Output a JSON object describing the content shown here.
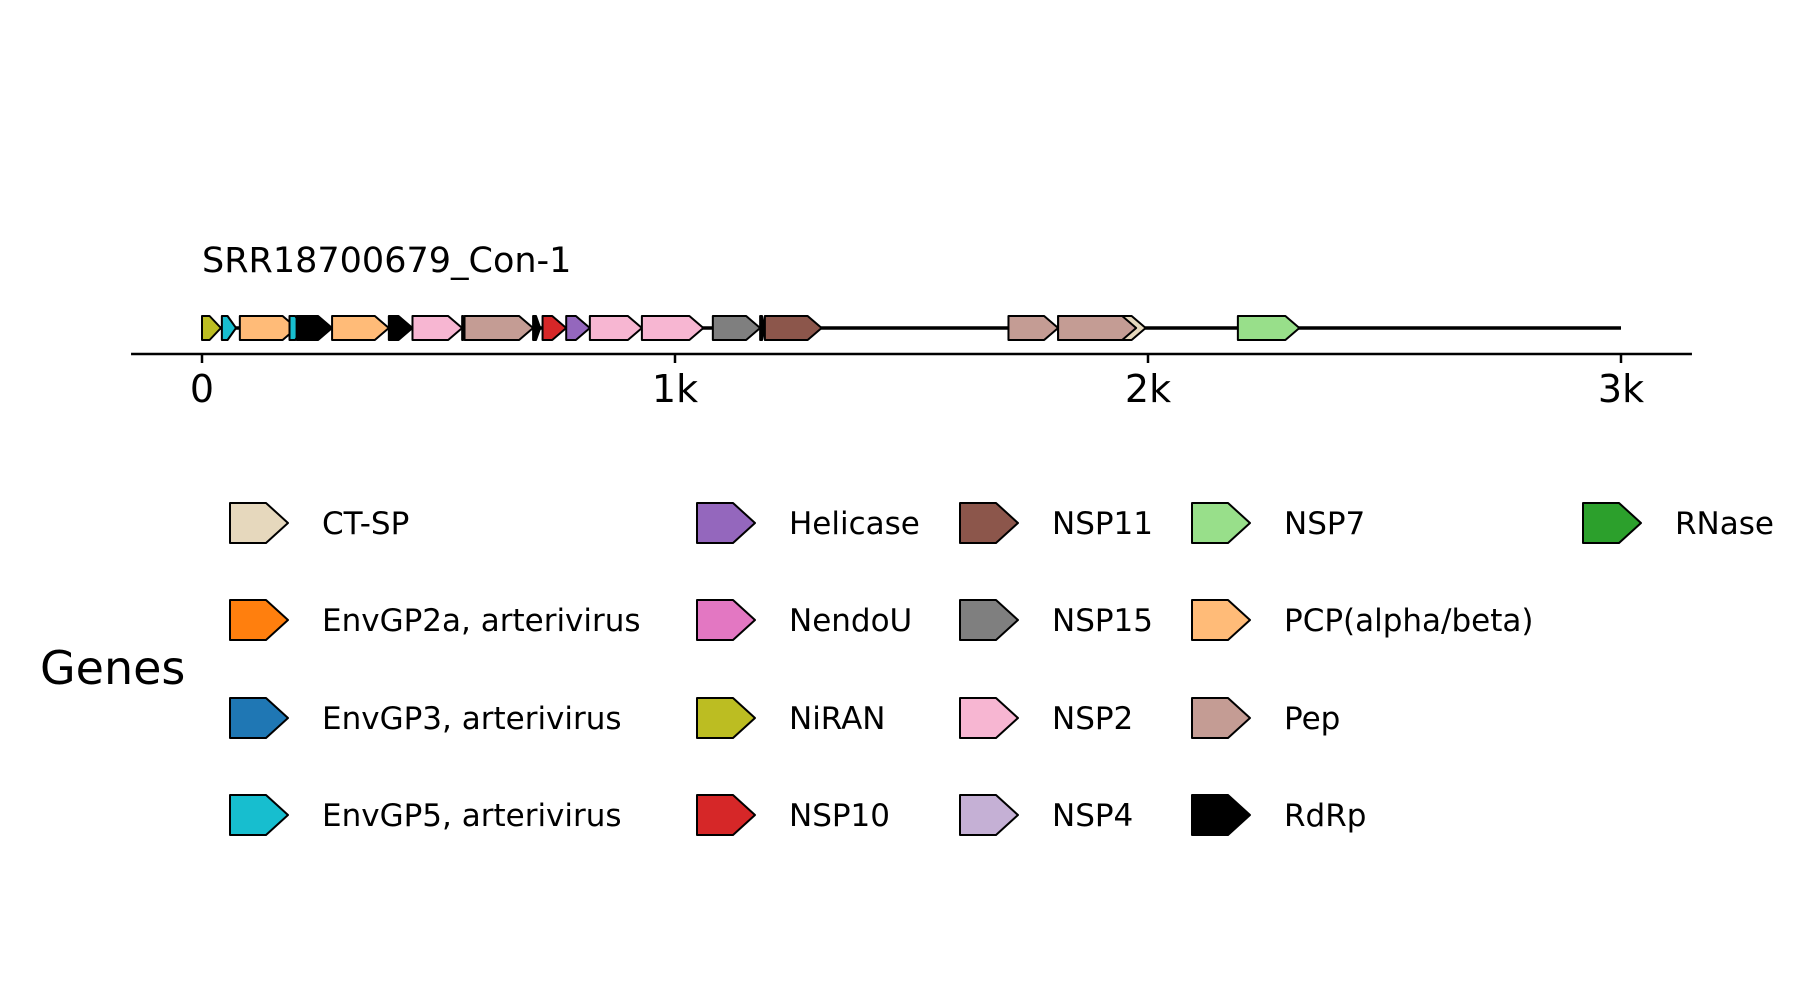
{
  "track": {
    "name": "SRR18700679_Con-1",
    "length": 3000
  },
  "axis": {
    "range": [
      -150,
      3150
    ],
    "ticks": [
      {
        "value": 0,
        "label": "0"
      },
      {
        "value": 1000,
        "label": "1k"
      },
      {
        "value": 2000,
        "label": "2k"
      },
      {
        "value": 3000,
        "label": "3k"
      }
    ]
  },
  "genes": [
    {
      "gene": "NiRAN",
      "start": 0,
      "end": 40
    },
    {
      "gene": "EnvGP5, arterivirus",
      "start": 42,
      "end": 72
    },
    {
      "gene": "PCP(alpha/beta)",
      "start": 80,
      "end": 200
    },
    {
      "gene": "EnvGP5, arterivirus",
      "start": 185,
      "end": 215
    },
    {
      "gene": "RdRp",
      "start": 200,
      "end": 275
    },
    {
      "gene": "PCP(alpha/beta)",
      "start": 275,
      "end": 395
    },
    {
      "gene": "RdRp",
      "start": 395,
      "end": 445
    },
    {
      "gene": "NSP2",
      "start": 445,
      "end": 550
    },
    {
      "gene": "RdRp",
      "start": 550,
      "end": 555
    },
    {
      "gene": "Pep",
      "start": 555,
      "end": 700
    },
    {
      "gene": "RdRp",
      "start": 700,
      "end": 715
    },
    {
      "gene": "NSP10",
      "start": 720,
      "end": 770
    },
    {
      "gene": "Helicase",
      "start": 770,
      "end": 820
    },
    {
      "gene": "NSP2",
      "start": 820,
      "end": 930
    },
    {
      "gene": "NSP2",
      "start": 930,
      "end": 1060
    },
    {
      "gene": "NSP15",
      "start": 1080,
      "end": 1180
    },
    {
      "gene": "RdRp",
      "start": 1180,
      "end": 1190
    },
    {
      "gene": "NSP11",
      "start": 1190,
      "end": 1310
    },
    {
      "gene": "Pep",
      "start": 1705,
      "end": 1810
    },
    {
      "gene": "CT-SP",
      "start": 1810,
      "end": 1995
    },
    {
      "gene": "Pep",
      "start": 1810,
      "end": 1975
    },
    {
      "gene": "NSP7",
      "start": 2190,
      "end": 2320
    }
  ],
  "legend": {
    "title": "Genes",
    "entries": [
      {
        "label": "CT-SP",
        "color": "#e6d8bd"
      },
      {
        "label": "EnvGP2a, arterivirus",
        "color": "#ff7f0e"
      },
      {
        "label": "EnvGP3, arterivirus",
        "color": "#1f77b4"
      },
      {
        "label": "EnvGP5, arterivirus",
        "color": "#17becf"
      },
      {
        "label": "Helicase",
        "color": "#9467bd"
      },
      {
        "label": "NendoU",
        "color": "#e377c2"
      },
      {
        "label": "NiRAN",
        "color": "#bcbd22"
      },
      {
        "label": "NSP10",
        "color": "#d62728"
      },
      {
        "label": "NSP11",
        "color": "#8c564b"
      },
      {
        "label": "NSP15",
        "color": "#7f7f7f"
      },
      {
        "label": "NSP2",
        "color": "#f7b6d2"
      },
      {
        "label": "NSP4",
        "color": "#c5b0d5"
      },
      {
        "label": "NSP7",
        "color": "#98df8a"
      },
      {
        "label": "PCP(alpha/beta)",
        "color": "#ffbb78"
      },
      {
        "label": "Pep",
        "color": "#c49c94"
      },
      {
        "label": "RdRp",
        "color": "#000000"
      },
      {
        "label": "RNase",
        "color": "#2ca02c"
      }
    ]
  }
}
